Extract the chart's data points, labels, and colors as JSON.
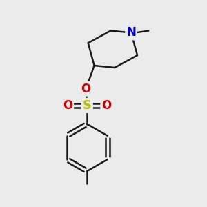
{
  "bg_color": "#ebebeb",
  "bond_color": "#1a1a1a",
  "N_color": "#0000cc",
  "O_color": "#cc0000",
  "S_color": "#bbbb00",
  "line_width": 1.8,
  "fig_width": 3.0,
  "fig_height": 3.0,
  "dpi": 100,
  "xlim": [
    0,
    10
  ],
  "ylim": [
    0,
    10
  ]
}
